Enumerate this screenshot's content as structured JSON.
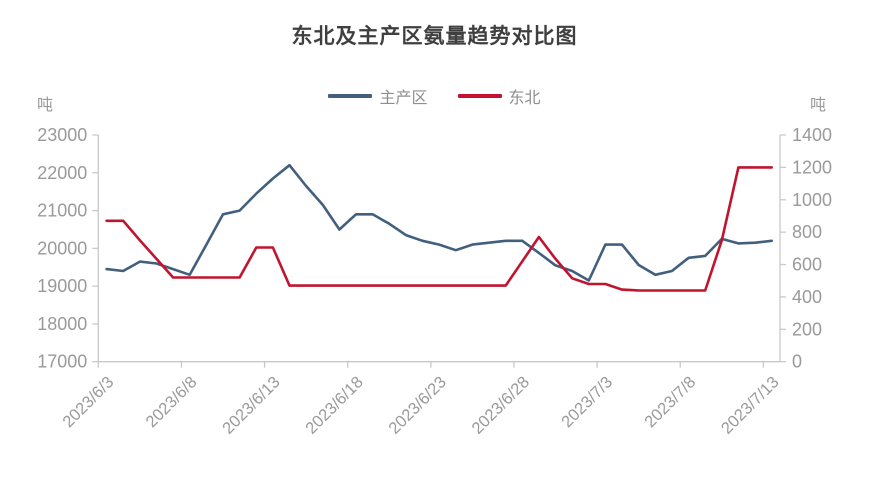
{
  "title": "东北及主产区氨量趋势对比图",
  "chart_data": {
    "type": "line",
    "grid": false,
    "legend_position": "top",
    "x": [
      "2023/6/3",
      "2023/6/4",
      "2023/6/5",
      "2023/6/6",
      "2023/6/7",
      "2023/6/8",
      "2023/6/9",
      "2023/6/10",
      "2023/6/11",
      "2023/6/12",
      "2023/6/13",
      "2023/6/14",
      "2023/6/15",
      "2023/6/16",
      "2023/6/17",
      "2023/6/18",
      "2023/6/19",
      "2023/6/20",
      "2023/6/21",
      "2023/6/22",
      "2023/6/23",
      "2023/6/24",
      "2023/6/25",
      "2023/6/26",
      "2023/6/27",
      "2023/6/28",
      "2023/6/29",
      "2023/6/30",
      "2023/7/1",
      "2023/7/2",
      "2023/7/3",
      "2023/7/4",
      "2023/7/5",
      "2023/7/6",
      "2023/7/7",
      "2023/7/8",
      "2023/7/9",
      "2023/7/10",
      "2023/7/11",
      "2023/7/12",
      "2023/7/13"
    ],
    "x_tick_labels": [
      "2023/6/3",
      "2023/6/8",
      "2023/6/13",
      "2023/6/18",
      "2023/6/23",
      "2023/6/28",
      "2023/7/3",
      "2023/7/8",
      "2023/7/13"
    ],
    "x_tick_interval": 5,
    "left_axis": {
      "unit": "吨",
      "min": 17000,
      "max": 23000,
      "step": 1000
    },
    "right_axis": {
      "unit": "吨",
      "min": 0,
      "max": 1400,
      "step": 200
    },
    "series": [
      {
        "name": "主产区",
        "axis": "left",
        "color": "#42607E",
        "values": [
          19450,
          19400,
          19650,
          19600,
          19450,
          19300,
          20100,
          20900,
          21000,
          21450,
          21850,
          22200,
          21650,
          21150,
          20500,
          20900,
          20900,
          20650,
          20350,
          20200,
          20100,
          19950,
          20100,
          20150,
          20200,
          20200,
          19880,
          19550,
          19400,
          19150,
          20100,
          20100,
          19560,
          19300,
          19400,
          19750,
          19800,
          20250,
          20130,
          20150,
          20200
        ]
      },
      {
        "name": "东北",
        "axis": "right",
        "color": "#C0142F",
        "values": [
          870,
          870,
          750,
          635,
          520,
          520,
          520,
          520,
          520,
          705,
          705,
          470,
          470,
          470,
          470,
          470,
          470,
          470,
          470,
          470,
          470,
          470,
          470,
          470,
          470,
          620,
          770,
          635,
          515,
          480,
          480,
          445,
          440,
          440,
          440,
          440,
          440,
          750,
          1200,
          1200,
          1200
        ]
      }
    ],
    "axis_color": "#c9c9c9",
    "tick_label_color": "#9a9a9a"
  }
}
